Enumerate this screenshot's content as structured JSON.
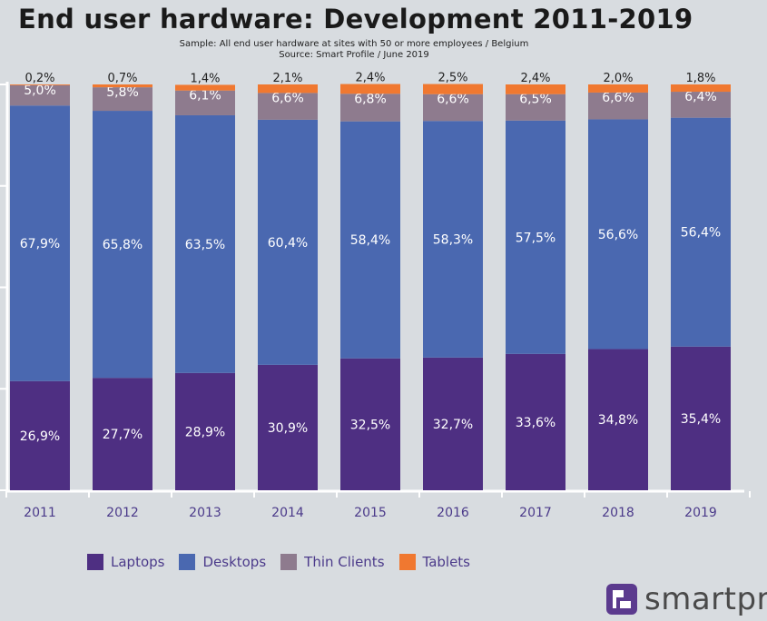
{
  "chart_data": {
    "type": "bar",
    "stacked": true,
    "percent": true,
    "title": "End user hardware: Development 2011-2019",
    "subtitle": [
      "Sample: All end user hardware at sites with 50 or more employees / Belgium",
      "Source: Smart Profile / June 2019"
    ],
    "categories": [
      "2011",
      "2012",
      "2013",
      "2014",
      "2015",
      "2016",
      "2017",
      "2018",
      "2019"
    ],
    "series": [
      {
        "name": "Laptops",
        "color": "#4e2f82",
        "values": [
          26.9,
          27.7,
          28.9,
          30.9,
          32.5,
          32.7,
          33.6,
          34.8,
          35.4
        ],
        "labels": [
          "26,9%",
          "27,7%",
          "28,9%",
          "30,9%",
          "32,5%",
          "32,7%",
          "33,6%",
          "34,8%",
          "35,4%"
        ]
      },
      {
        "name": "Desktops",
        "color": "#4a68b0",
        "values": [
          67.9,
          65.8,
          63.5,
          60.4,
          58.4,
          58.3,
          57.5,
          56.6,
          56.4
        ],
        "labels": [
          "67,9%",
          "65,8%",
          "63,5%",
          "60,4%",
          "58,4%",
          "58,3%",
          "57,5%",
          "56,6%",
          "56,4%"
        ]
      },
      {
        "name": "Thin Clients",
        "color": "#8e7b8e",
        "values": [
          5.0,
          5.8,
          6.1,
          6.6,
          6.8,
          6.6,
          6.5,
          6.6,
          6.4
        ],
        "labels": [
          "5,0%",
          "5,8%",
          "6,1%",
          "6,6%",
          "6,8%",
          "6,6%",
          "6,5%",
          "6,6%",
          "6,4%"
        ]
      },
      {
        "name": "Tablets",
        "color": "#f07830",
        "values": [
          0.2,
          0.7,
          1.4,
          2.1,
          2.4,
          2.5,
          2.4,
          2.0,
          1.8
        ],
        "labels": [
          "0,2%",
          "0,7%",
          "1,4%",
          "2,1%",
          "2,4%",
          "2,5%",
          "2,4%",
          "2,0%",
          "1,8%"
        ]
      }
    ],
    "ylim": [
      0,
      100
    ],
    "legend": "bottom"
  },
  "logo": {
    "text": "smartpro"
  }
}
